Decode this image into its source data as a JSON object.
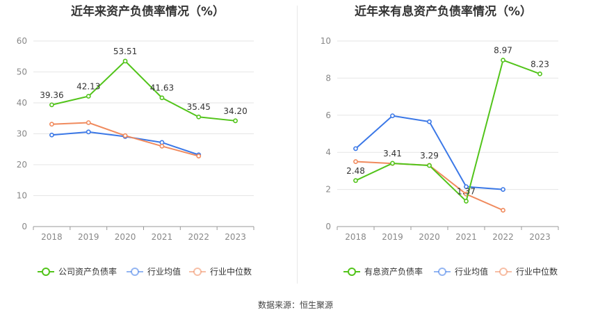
{
  "source": "数据来源：恒生聚源",
  "chart_data": [
    {
      "type": "line",
      "title": "近年来资产负债率情况（%）",
      "categories": [
        "2018",
        "2019",
        "2020",
        "2021",
        "2022",
        "2023"
      ],
      "ylim": [
        0,
        60
      ],
      "yticks": [
        0,
        10,
        20,
        30,
        40,
        50,
        60
      ],
      "grid": true,
      "legend_position": "bottom",
      "series": [
        {
          "name": "公司资产负债率",
          "color": "#52c41a",
          "values": [
            39.36,
            42.13,
            53.51,
            41.63,
            35.45,
            34.2
          ],
          "labels": [
            "39.36",
            "42.13",
            "53.51",
            "41.63",
            "35.45",
            "34.20"
          ],
          "show_labels": true
        },
        {
          "name": "行业均值",
          "color": "#3b78e7",
          "values": [
            29.6,
            30.6,
            29.1,
            27.2,
            23.2,
            null
          ],
          "show_labels": false
        },
        {
          "name": "行业中位数",
          "color": "#f08a5d",
          "values": [
            33.1,
            33.6,
            29.4,
            26.0,
            22.8,
            null
          ],
          "show_labels": false
        }
      ]
    },
    {
      "type": "line",
      "title": "近年来有息资产负债率情况（%）",
      "categories": [
        "2018",
        "2019",
        "2020",
        "2021",
        "2022",
        "2023"
      ],
      "ylim": [
        0,
        10
      ],
      "yticks": [
        0,
        2,
        4,
        6,
        8,
        10
      ],
      "grid": true,
      "legend_position": "bottom",
      "series": [
        {
          "name": "有息资产负债率",
          "color": "#52c41a",
          "values": [
            2.48,
            3.41,
            3.29,
            1.37,
            8.97,
            8.23
          ],
          "labels": [
            "2.48",
            "3.41",
            "3.29",
            "1.37",
            "8.97",
            "8.23"
          ],
          "show_labels": true
        },
        {
          "name": "行业均值",
          "color": "#3b78e7",
          "values": [
            4.2,
            5.97,
            5.65,
            2.15,
            2.0,
            null
          ],
          "show_labels": false
        },
        {
          "name": "行业中位数",
          "color": "#f08a5d",
          "values": [
            3.5,
            3.4,
            3.3,
            1.75,
            0.88,
            null
          ],
          "show_labels": false
        }
      ]
    }
  ]
}
